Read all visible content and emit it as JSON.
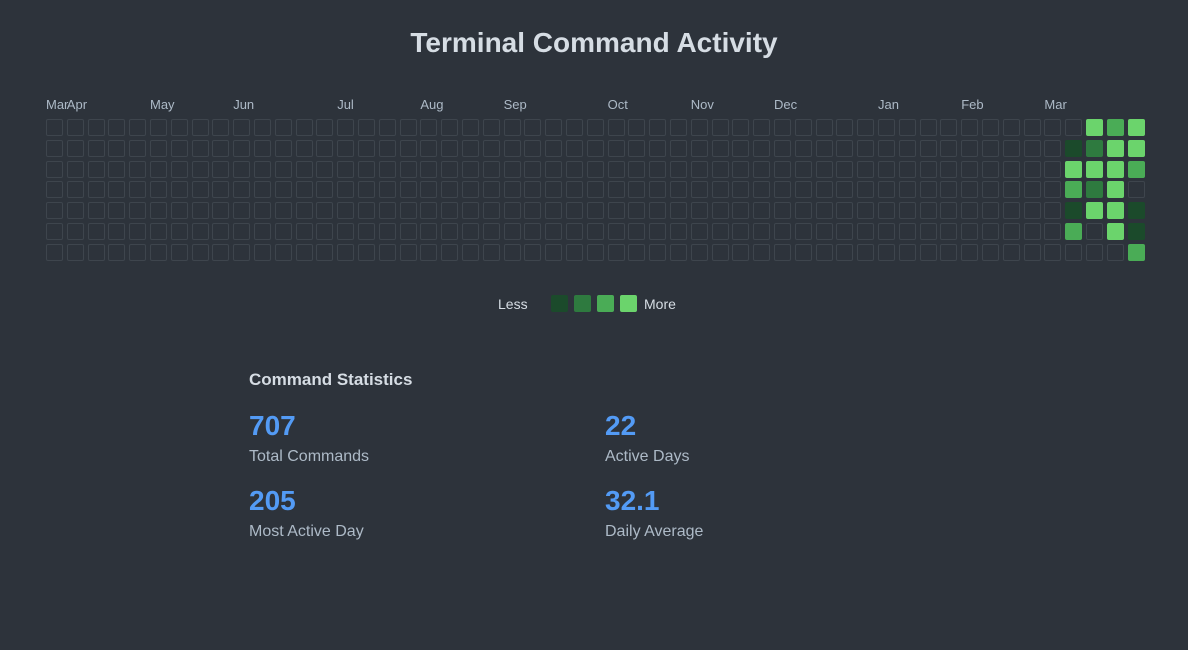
{
  "title": "Terminal Command Activity",
  "chart_data": {
    "type": "heatmap",
    "title": "Terminal Command Activity",
    "month_labels": [
      "Mar",
      "Apr",
      "May",
      "Jun",
      "Jul",
      "Aug",
      "Sep",
      "Oct",
      "Nov",
      "Dec",
      "Jan",
      "Feb",
      "Mar"
    ],
    "month_label_weeks": [
      0,
      1,
      5,
      9,
      14,
      18,
      22,
      27,
      31,
      35,
      40,
      44,
      48
    ],
    "weeks": 53,
    "days_per_week": 7,
    "active_cells": [
      {
        "week": 49,
        "day": 1,
        "level": 1
      },
      {
        "week": 49,
        "day": 2,
        "level": 4
      },
      {
        "week": 49,
        "day": 3,
        "level": 3
      },
      {
        "week": 49,
        "day": 4,
        "level": 1
      },
      {
        "week": 49,
        "day": 5,
        "level": 3
      },
      {
        "week": 50,
        "day": 0,
        "level": 4
      },
      {
        "week": 50,
        "day": 1,
        "level": 2
      },
      {
        "week": 50,
        "day": 2,
        "level": 4
      },
      {
        "week": 50,
        "day": 3,
        "level": 2
      },
      {
        "week": 50,
        "day": 4,
        "level": 4
      },
      {
        "week": 51,
        "day": 0,
        "level": 3
      },
      {
        "week": 51,
        "day": 1,
        "level": 4
      },
      {
        "week": 51,
        "day": 2,
        "level": 4
      },
      {
        "week": 51,
        "day": 3,
        "level": 4
      },
      {
        "week": 51,
        "day": 4,
        "level": 4
      },
      {
        "week": 51,
        "day": 5,
        "level": 4
      },
      {
        "week": 52,
        "day": 0,
        "level": 4
      },
      {
        "week": 52,
        "day": 1,
        "level": 4
      },
      {
        "week": 52,
        "day": 2,
        "level": 3
      },
      {
        "week": 52,
        "day": 4,
        "level": 1
      },
      {
        "week": 52,
        "day": 5,
        "level": 1
      },
      {
        "week": 52,
        "day": 6,
        "level": 3
      }
    ],
    "level_colors": [
      "#2d333b",
      "#1b4a2b",
      "#2e7a3f",
      "#4aac56",
      "#6bd46c"
    ],
    "empty_border_color": "#3e454d"
  },
  "legend": {
    "less_label": "Less",
    "more_label": "More"
  },
  "stats": {
    "title": "Command Statistics",
    "total_commands": {
      "value": "707",
      "label": "Total Commands"
    },
    "active_days": {
      "value": "22",
      "label": "Active Days"
    },
    "most_active_day": {
      "value": "205",
      "label": "Most Active Day"
    },
    "daily_average": {
      "value": "32.1",
      "label": "Daily Average"
    }
  },
  "colors": {
    "background": "#2d333b",
    "accent": "#539bf5"
  }
}
